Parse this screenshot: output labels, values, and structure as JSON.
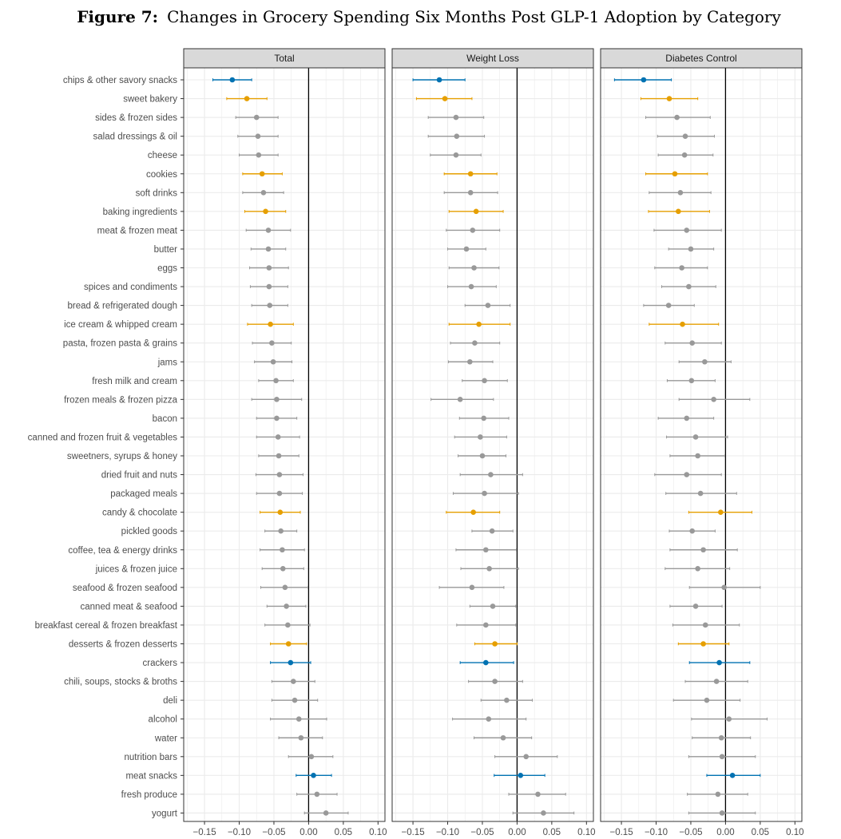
{
  "chart_data": {
    "type": "dotplot-errorbar",
    "title_prefix": "Figure 7:",
    "title": "Changes in Grocery Spending Six Months Post GLP-1 Adoption by Category",
    "xlim": [
      -0.18,
      0.11
    ],
    "x_ticks": [
      -0.15,
      -0.1,
      -0.05,
      0.0,
      0.05,
      0.1
    ],
    "x_tick_labels": [
      "−0.15",
      "−0.10",
      "−0.05",
      "0.00",
      "0.05",
      "0.10"
    ],
    "colors": {
      "grey": "#999999",
      "orange": "#E69F00",
      "blue": "#0072B2",
      "strip_fill": "#D9D9D9",
      "grid": "#EBEBEB"
    },
    "categories": [
      "chips & other savory snacks",
      "sweet bakery",
      "sides & frozen sides",
      "salad dressings & oil",
      "cheese",
      "cookies",
      "soft drinks",
      "baking ingredients",
      "meat & frozen meat",
      "butter",
      "eggs",
      "spices and condiments",
      "bread & refrigerated dough",
      "ice cream & whipped cream",
      "pasta, frozen pasta & grains",
      "jams",
      "fresh milk and cream",
      "frozen meals & frozen pizza",
      "bacon",
      "canned and frozen fruit & vegetables",
      "sweetners, syrups & honey",
      "dried fruit and nuts",
      "packaged meals",
      "candy & chocolate",
      "pickled goods",
      "coffee, tea & energy drinks",
      "juices & frozen juice",
      "seafood & frozen seafood",
      "canned meat & seafood",
      "breakfast cereal & frozen breakfast",
      "desserts & frozen desserts",
      "crackers",
      "chili, soups, stocks & broths",
      "deli",
      "alcohol",
      "water",
      "nutrition bars",
      "meat snacks",
      "fresh produce",
      "yogurt"
    ],
    "panels": [
      {
        "name": "Total",
        "estimates": [
          -0.11,
          -0.089,
          -0.075,
          -0.073,
          -0.072,
          -0.067,
          -0.065,
          -0.062,
          -0.058,
          -0.058,
          -0.057,
          -0.057,
          -0.056,
          -0.055,
          -0.053,
          -0.051,
          -0.047,
          -0.046,
          -0.046,
          -0.044,
          -0.043,
          -0.042,
          -0.042,
          -0.041,
          -0.04,
          -0.038,
          -0.037,
          -0.034,
          -0.032,
          -0.03,
          -0.029,
          -0.026,
          -0.022,
          -0.02,
          -0.014,
          -0.011,
          0.004,
          0.007,
          0.012,
          0.025
        ],
        "lower": [
          -0.138,
          -0.118,
          -0.105,
          -0.102,
          -0.1,
          -0.095,
          -0.095,
          -0.092,
          -0.09,
          -0.083,
          -0.085,
          -0.084,
          -0.082,
          -0.088,
          -0.081,
          -0.078,
          -0.072,
          -0.082,
          -0.075,
          -0.075,
          -0.072,
          -0.076,
          -0.075,
          -0.07,
          -0.063,
          -0.07,
          -0.067,
          -0.069,
          -0.06,
          -0.063,
          -0.055,
          -0.055,
          -0.053,
          -0.053,
          -0.055,
          -0.043,
          -0.029,
          -0.018,
          -0.017,
          -0.006
        ],
        "upper": [
          -0.082,
          -0.06,
          -0.044,
          -0.044,
          -0.044,
          -0.038,
          -0.036,
          -0.033,
          -0.026,
          -0.033,
          -0.029,
          -0.03,
          -0.03,
          -0.022,
          -0.025,
          -0.024,
          -0.022,
          -0.01,
          -0.017,
          -0.013,
          -0.014,
          -0.008,
          -0.009,
          -0.012,
          -0.017,
          -0.006,
          -0.007,
          -0.001,
          -0.004,
          0.002,
          -0.003,
          0.003,
          0.009,
          0.013,
          0.026,
          0.02,
          0.035,
          0.033,
          0.041,
          0.057
        ],
        "colors": [
          "blue",
          "orange",
          "grey",
          "grey",
          "grey",
          "orange",
          "grey",
          "orange",
          "grey",
          "grey",
          "grey",
          "grey",
          "grey",
          "orange",
          "grey",
          "grey",
          "grey",
          "grey",
          "grey",
          "grey",
          "grey",
          "grey",
          "grey",
          "orange",
          "grey",
          "grey",
          "grey",
          "grey",
          "grey",
          "grey",
          "orange",
          "blue",
          "grey",
          "grey",
          "grey",
          "grey",
          "grey",
          "blue",
          "grey",
          "grey"
        ]
      },
      {
        "name": "Weight Loss",
        "estimates": [
          -0.112,
          -0.104,
          -0.088,
          -0.087,
          -0.088,
          -0.067,
          -0.067,
          -0.059,
          -0.064,
          -0.073,
          -0.062,
          -0.066,
          -0.042,
          -0.055,
          -0.061,
          -0.068,
          -0.047,
          -0.082,
          -0.048,
          -0.053,
          -0.05,
          -0.038,
          -0.047,
          -0.063,
          -0.036,
          -0.045,
          -0.04,
          -0.065,
          -0.035,
          -0.045,
          -0.032,
          -0.045,
          -0.032,
          -0.015,
          -0.041,
          -0.02,
          0.013,
          0.005,
          0.03,
          0.038
        ],
        "lower": [
          -0.15,
          -0.145,
          -0.128,
          -0.128,
          -0.125,
          -0.105,
          -0.105,
          -0.098,
          -0.102,
          -0.1,
          -0.098,
          -0.1,
          -0.075,
          -0.098,
          -0.096,
          -0.099,
          -0.079,
          -0.124,
          -0.083,
          -0.09,
          -0.085,
          -0.082,
          -0.092,
          -0.102,
          -0.065,
          -0.088,
          -0.081,
          -0.112,
          -0.068,
          -0.087,
          -0.061,
          -0.082,
          -0.07,
          -0.052,
          -0.093,
          -0.062,
          -0.032,
          -0.033,
          -0.012,
          -0.006
        ],
        "upper": [
          -0.075,
          -0.065,
          -0.048,
          -0.047,
          -0.052,
          -0.029,
          -0.028,
          -0.02,
          -0.025,
          -0.045,
          -0.026,
          -0.03,
          -0.01,
          -0.01,
          -0.025,
          -0.035,
          -0.014,
          -0.034,
          -0.012,
          -0.015,
          -0.016,
          0.008,
          0.002,
          -0.025,
          -0.006,
          -0.001,
          0.002,
          -0.019,
          -0.002,
          -0.002,
          0.0,
          -0.005,
          0.008,
          0.022,
          0.013,
          0.021,
          0.058,
          0.04,
          0.07,
          0.082
        ]
      },
      {
        "name": "Diabetes Control",
        "estimates": [
          -0.118,
          -0.081,
          -0.07,
          -0.058,
          -0.059,
          -0.073,
          -0.065,
          -0.068,
          -0.056,
          -0.05,
          -0.063,
          -0.053,
          -0.082,
          -0.062,
          -0.048,
          -0.03,
          -0.049,
          -0.017,
          -0.056,
          -0.043,
          -0.04,
          -0.056,
          -0.036,
          -0.007,
          -0.048,
          -0.032,
          -0.04,
          -0.002,
          -0.043,
          -0.029,
          -0.032,
          -0.009,
          -0.013,
          -0.027,
          0.005,
          -0.006,
          -0.005,
          0.01,
          -0.011,
          -0.005
        ],
        "lower": [
          -0.16,
          -0.122,
          -0.115,
          -0.098,
          -0.097,
          -0.115,
          -0.11,
          -0.111,
          -0.103,
          -0.082,
          -0.102,
          -0.092,
          -0.118,
          -0.11,
          -0.087,
          -0.067,
          -0.084,
          -0.067,
          -0.097,
          -0.085,
          -0.08,
          -0.102,
          -0.086,
          -0.053,
          -0.081,
          -0.08,
          -0.087,
          -0.052,
          -0.08,
          -0.076,
          -0.068,
          -0.052,
          -0.058,
          -0.075,
          -0.049,
          -0.048,
          -0.053,
          -0.027,
          -0.055,
          -0.053
        ],
        "upper": [
          -0.078,
          -0.04,
          -0.022,
          -0.016,
          -0.018,
          -0.026,
          -0.021,
          -0.023,
          -0.006,
          -0.017,
          -0.026,
          -0.014,
          -0.045,
          -0.01,
          -0.006,
          0.008,
          -0.015,
          0.035,
          -0.017,
          0.003,
          -0.001,
          -0.006,
          0.016,
          0.038,
          -0.015,
          0.017,
          0.006,
          0.05,
          -0.005,
          0.02,
          0.005,
          0.035,
          0.032,
          0.021,
          0.06,
          0.036,
          0.043,
          0.05,
          0.032,
          0.043
        ]
      }
    ]
  }
}
